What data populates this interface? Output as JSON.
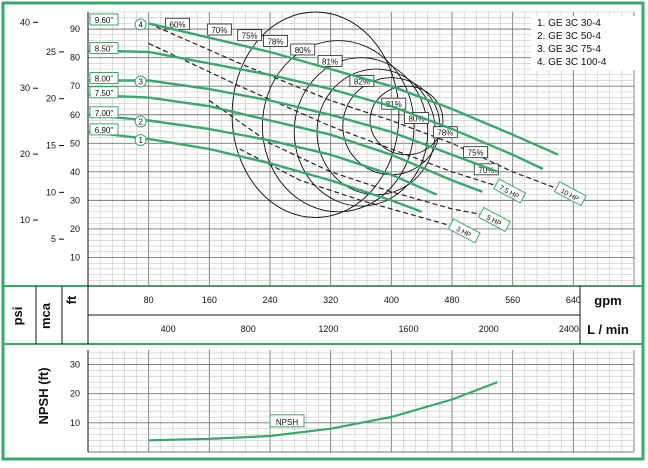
{
  "chart_data": [
    {
      "type": "line",
      "panel": "head-capacity",
      "legend": [
        "1. GE 3C 30-4",
        "2. GE 3C 50-4",
        "3. GE 3C 75-4",
        "4. GE 3C 100-4"
      ],
      "axes": {
        "x_gpm": {
          "label": "gpm",
          "ticks": [
            "80",
            "160",
            "240",
            "320",
            "400",
            "480",
            "560",
            "640"
          ],
          "range": [
            0,
            720
          ]
        },
        "x_lmin": {
          "label": "L / min",
          "ticks": [
            "400",
            "800",
            "1200",
            "1600",
            "2000",
            "2400"
          ]
        },
        "y_ft": {
          "label": "ft",
          "ticks": [
            "10",
            "20",
            "30",
            "40",
            "50",
            "60",
            "70",
            "80",
            "90"
          ],
          "range": [
            0,
            96
          ]
        },
        "y_psi": {
          "label": "psi",
          "ticks": [
            "10",
            "20",
            "30",
            "40"
          ]
        },
        "y_mca": {
          "label": "mca",
          "ticks": [
            "5",
            "10",
            "15",
            "20",
            "25"
          ]
        },
        "grid": true
      },
      "impellers": [
        {
          "label": "9.60\"",
          "marker": "4",
          "points": [
            [
              80,
              92
            ],
            [
              160,
              87
            ],
            [
              240,
              82
            ],
            [
              320,
              76
            ],
            [
              400,
              70
            ],
            [
              480,
              62
            ],
            [
              560,
              53
            ],
            [
              620,
              46
            ]
          ]
        },
        {
          "label": "8.50\"",
          "marker": "",
          "points": [
            [
              0,
              82.5
            ],
            [
              80,
              82
            ],
            [
              160,
              78
            ],
            [
              240,
              74
            ],
            [
              320,
              69
            ],
            [
              400,
              63
            ],
            [
              480,
              55
            ],
            [
              560,
              46
            ],
            [
              600,
              41
            ]
          ]
        },
        {
          "label": "8.00\"",
          "marker": "3",
          "points": [
            [
              0,
              72
            ],
            [
              80,
              72
            ],
            [
              160,
              69
            ],
            [
              240,
              65
            ],
            [
              320,
              60
            ],
            [
              400,
              54
            ],
            [
              480,
              46
            ],
            [
              540,
              40
            ]
          ]
        },
        {
          "label": "7.50\"",
          "marker": "",
          "points": [
            [
              0,
              67
            ],
            [
              80,
              66
            ],
            [
              160,
              63
            ],
            [
              240,
              58
            ],
            [
              320,
              53
            ],
            [
              400,
              46
            ],
            [
              480,
              37
            ],
            [
              520,
              33
            ]
          ]
        },
        {
          "label": "7.00\"",
          "marker": "2",
          "points": [
            [
              0,
              60
            ],
            [
              80,
              58
            ],
            [
              160,
              55
            ],
            [
              240,
              51
            ],
            [
              320,
              46
            ],
            [
              400,
              39
            ],
            [
              460,
              32
            ]
          ]
        },
        {
          "label": "6.90\"",
          "marker": "1",
          "points": [
            [
              0,
              54
            ],
            [
              80,
              51.5
            ],
            [
              160,
              48
            ],
            [
              240,
              43
            ],
            [
              320,
              37
            ],
            [
              400,
              30
            ],
            [
              440,
              26
            ]
          ]
        }
      ],
      "power_curves": [
        {
          "label": "10 HP",
          "points": [
            [
              80,
              92
            ],
            [
              200,
              78
            ],
            [
              320,
              65
            ],
            [
              400,
              58
            ],
            [
              480,
              50
            ],
            [
              560,
              40
            ],
            [
              620,
              34
            ]
          ]
        },
        {
          "label": "7.5 HP",
          "points": [
            [
              80,
              85
            ],
            [
              200,
              70
            ],
            [
              320,
              56
            ],
            [
              400,
              48
            ],
            [
              480,
              40
            ],
            [
              540,
              35
            ]
          ]
        },
        {
          "label": "5 HP",
          "points": [
            [
              160,
              65
            ],
            [
              240,
              50
            ],
            [
              320,
              40
            ],
            [
              400,
              33
            ],
            [
              480,
              27
            ],
            [
              520,
              25
            ]
          ]
        },
        {
          "label": "3 HP",
          "points": [
            [
              200,
              48
            ],
            [
              280,
              37
            ],
            [
              360,
              30
            ],
            [
              440,
              24
            ],
            [
              480,
              21
            ]
          ]
        }
      ],
      "efficiency_labels": [
        "60%",
        "70%",
        "75%",
        "78%",
        "80%",
        "81%",
        "82%",
        "81%",
        "80%",
        "78%",
        "75%",
        "70%"
      ]
    },
    {
      "type": "line",
      "panel": "npsh",
      "ylabel": "NPSH (ft)",
      "yticks": [
        "10",
        "20",
        "30"
      ],
      "range": [
        0,
        35
      ],
      "series": [
        {
          "name": "NPSH",
          "points": [
            [
              80,
              4
            ],
            [
              160,
              4.5
            ],
            [
              240,
              5.5
            ],
            [
              320,
              8
            ],
            [
              400,
              12
            ],
            [
              480,
              18
            ],
            [
              540,
              24
            ]
          ]
        }
      ]
    }
  ],
  "colors": {
    "frame": "#3aa86b",
    "curve": "#3aa86b",
    "grid_major": "#777777",
    "grid_minor": "#bbbbbb"
  }
}
